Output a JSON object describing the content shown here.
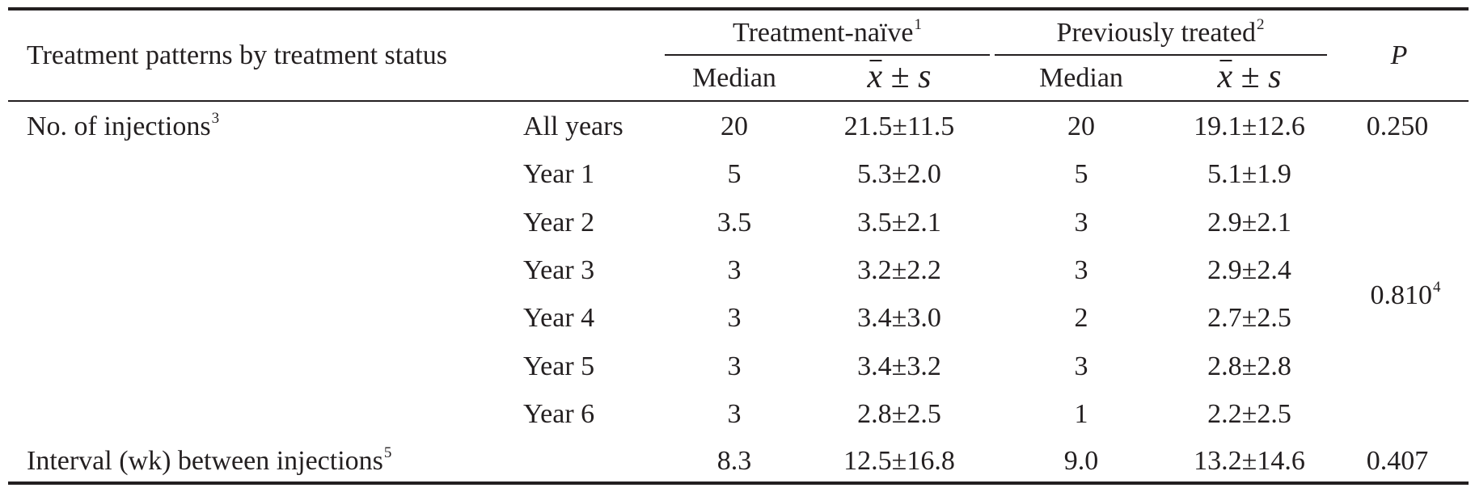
{
  "table": {
    "row_header": "Treatment patterns by treatment status",
    "groups": [
      {
        "label": "Treatment-naïve",
        "note": "1"
      },
      {
        "label": "Previously treated",
        "note": "2"
      }
    ],
    "p_header": "P",
    "median_label": "Median",
    "stat_symbol": {
      "x": "x",
      "pm": "±",
      "s": "s"
    },
    "injections": {
      "label": "No. of injections",
      "note": "3",
      "rows": [
        {
          "period": "All years",
          "tn_median": "20",
          "tn_mean": "21.5±11.5",
          "pt_median": "20",
          "pt_mean": "19.1±12.6"
        },
        {
          "period": "Year 1",
          "tn_median": "5",
          "tn_mean": "5.3±2.0",
          "pt_median": "5",
          "pt_mean": "5.1±1.9"
        },
        {
          "period": "Year 2",
          "tn_median": "3.5",
          "tn_mean": "3.5±2.1",
          "pt_median": "3",
          "pt_mean": "2.9±2.1"
        },
        {
          "period": "Year 3",
          "tn_median": "3",
          "tn_mean": "3.2±2.2",
          "pt_median": "3",
          "pt_mean": "2.9±2.4"
        },
        {
          "period": "Year 4",
          "tn_median": "3",
          "tn_mean": "3.4±3.0",
          "pt_median": "2",
          "pt_mean": "2.7±2.5"
        },
        {
          "period": "Year 5",
          "tn_median": "3",
          "tn_mean": "3.4±3.2",
          "pt_median": "3",
          "pt_mean": "2.8±2.8"
        },
        {
          "period": "Year 6",
          "tn_median": "3",
          "tn_mean": "2.8±2.5",
          "pt_median": "1",
          "pt_mean": "2.2±2.5"
        }
      ],
      "p_all_years": "0.250",
      "p_yearly": "0.810",
      "p_yearly_note": "4"
    },
    "interval": {
      "label": "Interval (wk) between injections",
      "note": "5",
      "tn_median": "8.3",
      "tn_mean": "12.5±16.8",
      "pt_median": "9.0",
      "pt_mean": "13.2±14.6",
      "p": "0.407"
    }
  }
}
